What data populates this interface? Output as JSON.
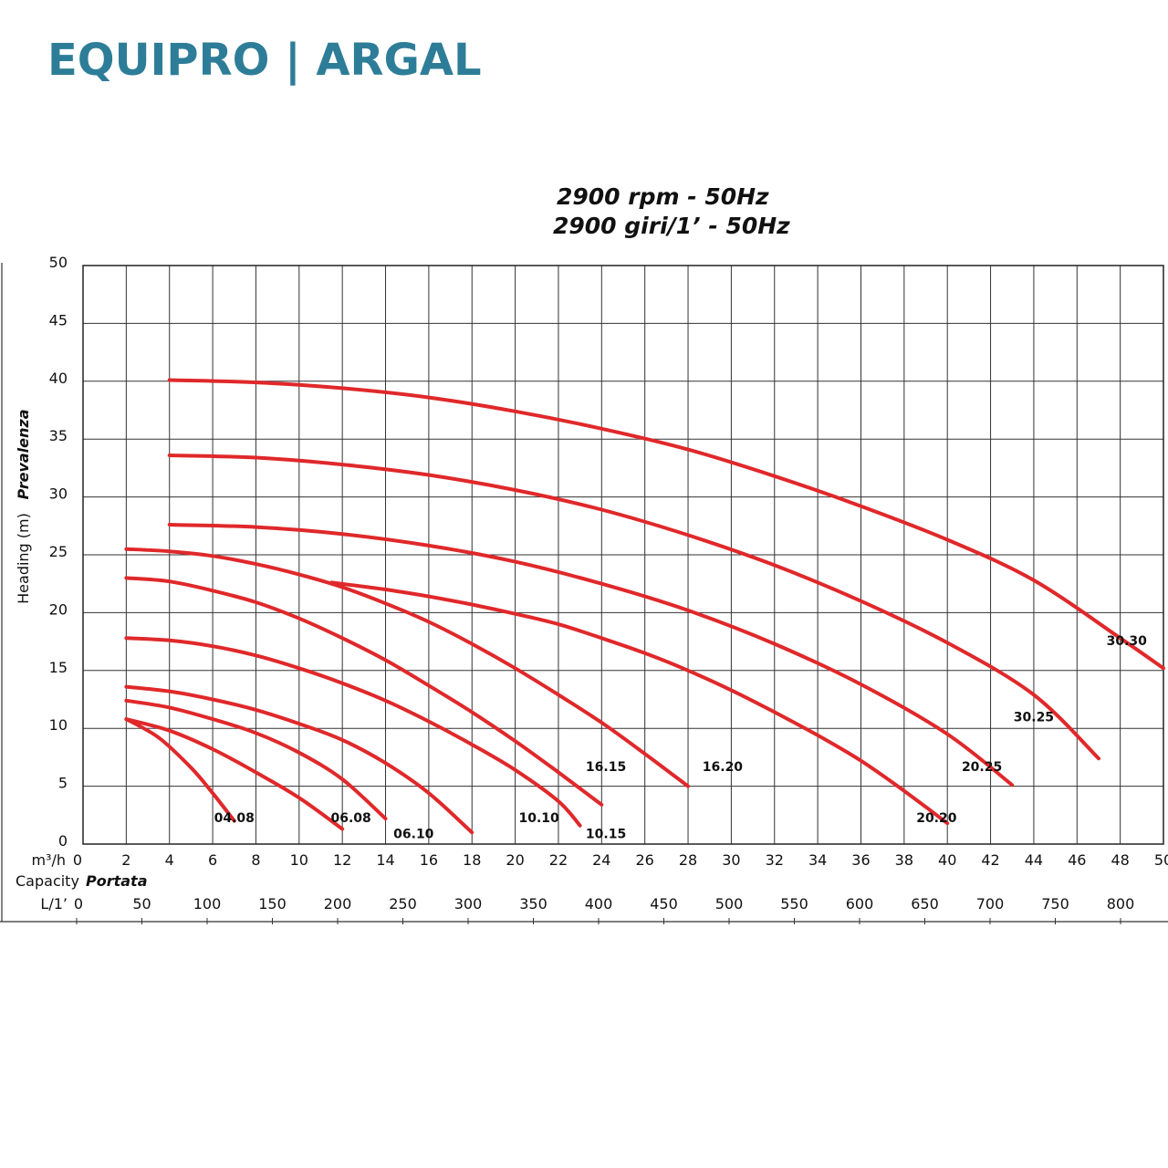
{
  "brand": {
    "text": "EQUIPRO | ARGAL",
    "color": "#2e7d98"
  },
  "chart_data": {
    "type": "line",
    "title": "2900 rpm - 50Hz",
    "subtitle": "2900 giri/1’ - 50Hz",
    "ylabel": "Heading (m)",
    "ylabel_alt": "Prevalenza",
    "xlabel": "Capacity",
    "xlabel_alt": "Portata",
    "x_unit_primary": "m³/h",
    "x_unit_secondary": "L/1’",
    "xlim": [
      0,
      50
    ],
    "ylim": [
      0,
      50
    ],
    "x_ticks": [
      0,
      2,
      4,
      6,
      8,
      10,
      12,
      14,
      16,
      18,
      20,
      22,
      24,
      26,
      28,
      30,
      32,
      34,
      36,
      38,
      40,
      42,
      44,
      46,
      48,
      50
    ],
    "y_ticks": [
      0,
      5,
      10,
      15,
      20,
      25,
      30,
      35,
      40,
      45,
      50
    ],
    "secondary_ticks": [
      "0",
      "50",
      "100",
      "150",
      "200",
      "250",
      "300",
      "350",
      "400",
      "450",
      "500",
      "550",
      "600",
      "650",
      "700",
      "750",
      "800"
    ],
    "grid": true,
    "line_color": "#e0282a",
    "series": [
      {
        "name": "04.08",
        "x": [
          2,
          3.5,
          5,
          6,
          7
        ],
        "y": [
          10.8,
          9.2,
          6.6,
          4.4,
          2
        ]
      },
      {
        "name": "06.08",
        "x": [
          2,
          4,
          6,
          8,
          10,
          12
        ],
        "y": [
          10.8,
          9.8,
          8.2,
          6.2,
          4,
          1.3
        ]
      },
      {
        "name": "06.10",
        "x": [
          2,
          4,
          6,
          8,
          10,
          12,
          14
        ],
        "y": [
          12.4,
          11.8,
          10.8,
          9.6,
          7.9,
          5.6,
          2.2
        ]
      },
      {
        "name": "10.10",
        "x": [
          2,
          4,
          6,
          8,
          10,
          12,
          14,
          16,
          18
        ],
        "y": [
          13.6,
          13.2,
          12.5,
          11.6,
          10.4,
          9,
          7,
          4.4,
          1
        ]
      },
      {
        "name": "10.15",
        "x": [
          2,
          4,
          6,
          8,
          10,
          12,
          14,
          16,
          18,
          20,
          22,
          23
        ],
        "y": [
          17.8,
          17.6,
          17.1,
          16.3,
          15.2,
          13.9,
          12.4,
          10.6,
          8.6,
          6.4,
          3.7,
          1.6
        ]
      },
      {
        "name": "16.15",
        "x": [
          2,
          4,
          6,
          8,
          10,
          12,
          14,
          16,
          18,
          20,
          22,
          24
        ],
        "y": [
          23,
          22.7,
          21.9,
          20.9,
          19.5,
          17.8,
          15.9,
          13.7,
          11.4,
          8.9,
          6.2,
          3.4
        ]
      },
      {
        "name": "16.20",
        "x": [
          2,
          4,
          6,
          8,
          10,
          12,
          14,
          16,
          18,
          20,
          22,
          24,
          26,
          28
        ],
        "y": [
          25.5,
          25.3,
          24.9,
          24.2,
          23.3,
          22.2,
          20.8,
          19.2,
          17.3,
          15.2,
          12.9,
          10.5,
          7.8,
          5
        ]
      },
      {
        "name": "20.20",
        "x": [
          11.5,
          14,
          16,
          18,
          20,
          22,
          24,
          26,
          28,
          30,
          32,
          34,
          36,
          38,
          40
        ],
        "y": [
          22.6,
          22,
          21.4,
          20.7,
          19.9,
          19,
          17.8,
          16.5,
          15,
          13.3,
          11.4,
          9.4,
          7.2,
          4.6,
          1.8
        ]
      },
      {
        "name": "20.25",
        "x": [
          4,
          8,
          12,
          16,
          20,
          24,
          28,
          32,
          36,
          40,
          43
        ],
        "y": [
          27.6,
          27.4,
          26.8,
          25.8,
          24.4,
          22.5,
          20.2,
          17.3,
          13.8,
          9.5,
          5.1
        ]
      },
      {
        "name": "30.25",
        "x": [
          4,
          8,
          12,
          16,
          20,
          24,
          28,
          32,
          36,
          40,
          44,
          47
        ],
        "y": [
          33.6,
          33.4,
          32.8,
          31.9,
          30.6,
          28.9,
          26.7,
          24.1,
          21,
          17.4,
          12.9,
          7.4
        ]
      },
      {
        "name": "30.30",
        "x": [
          4,
          8,
          12,
          16,
          20,
          24,
          28,
          32,
          36,
          40,
          44,
          48,
          50
        ],
        "y": [
          40.1,
          39.9,
          39.4,
          38.6,
          37.4,
          35.9,
          34.1,
          31.8,
          29.2,
          26.3,
          22.8,
          17.8,
          15.2
        ]
      }
    ],
    "curve_labels": [
      {
        "name": "04.08",
        "x": 7,
        "y": 1.9
      },
      {
        "name": "06.08",
        "x": 12.4,
        "y": 1.9
      },
      {
        "name": "06.10",
        "x": 15.3,
        "y": 0.5
      },
      {
        "name": "10.10",
        "x": 21.1,
        "y": 1.9
      },
      {
        "name": "10.15",
        "x": 24.2,
        "y": 0.5
      },
      {
        "name": "16.15",
        "x": 24.2,
        "y": 6.3
      },
      {
        "name": "16.20",
        "x": 29.6,
        "y": 6.3
      },
      {
        "name": "20.20",
        "x": 39.5,
        "y": 1.9
      },
      {
        "name": "20.25",
        "x": 41.6,
        "y": 6.3
      },
      {
        "name": "30.25",
        "x": 44,
        "y": 10.6
      },
      {
        "name": "30.30",
        "x": 48.3,
        "y": 17.2
      }
    ]
  }
}
